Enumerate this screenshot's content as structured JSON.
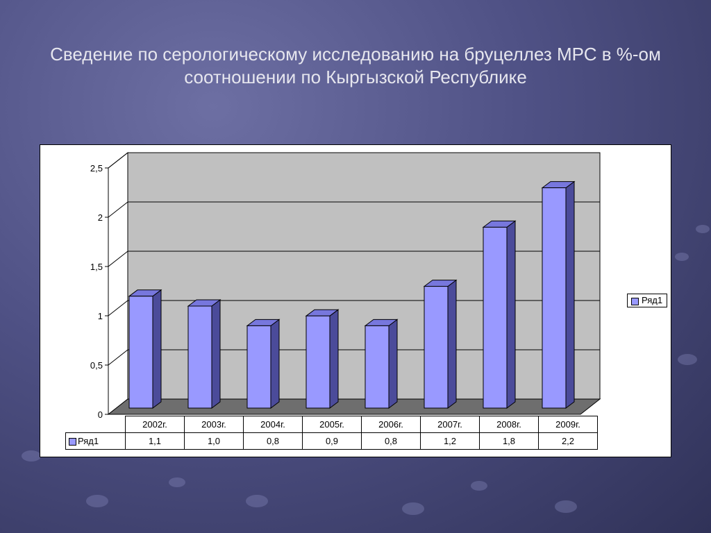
{
  "slide": {
    "title": "Сведение по серологическому исследованию на бруцеллез МРС в %-ом соотношении по Кыргызской Республике"
  },
  "colors": {
    "bar_front": "#9999ff",
    "bar_side": "#4b4b9a",
    "bar_top": "#7777dd",
    "wall": "#c0c0c0",
    "floor": "#6e6e6e"
  },
  "chart_data": {
    "type": "bar",
    "categories": [
      "2002г.",
      "2003г.",
      "2004г.",
      "2005г.",
      "2006г.",
      "2007г.",
      "2008г.",
      "2009г."
    ],
    "series": [
      {
        "name": "Ряд1",
        "values": [
          1.1,
          1.0,
          0.8,
          0.9,
          0.8,
          1.2,
          1.8,
          2.2
        ]
      }
    ],
    "value_labels": [
      "1,1",
      "1,0",
      "0,8",
      "0,9",
      "0,8",
      "1,2",
      "1,8",
      "2,2"
    ],
    "ylim": [
      0,
      2.5
    ],
    "yticks": [
      0,
      0.5,
      1,
      1.5,
      2,
      2.5
    ],
    "ytick_labels": [
      "0",
      "0,5",
      "1",
      "1,5",
      "2",
      "2,5"
    ],
    "grid": true,
    "legend_position": "right",
    "data_table": true,
    "style": "3d-column"
  }
}
